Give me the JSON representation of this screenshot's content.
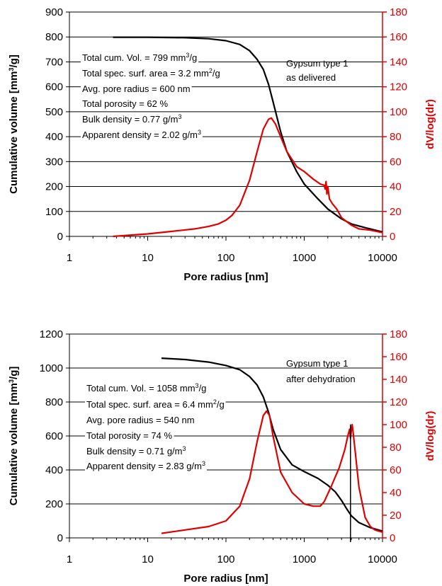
{
  "colors": {
    "cumulative": "#000000",
    "derivative": "#e00000",
    "grid": "#000000"
  },
  "chart_data": [
    {
      "type": "line",
      "xscale": "log",
      "xlim": [
        1,
        10000
      ],
      "x_ticks": [
        "1",
        "10",
        "100",
        "1000",
        "10000"
      ],
      "xlabel": "Pore radius [nm]",
      "ylabel": "Cumulative volume [mm3/g]",
      "ylabel_parts": {
        "pre": "Cumulative volume [mm",
        "sup": "3",
        "post": "/g]"
      },
      "ylim": [
        0,
        900
      ],
      "y_ticks": [
        "0",
        "100",
        "200",
        "300",
        "400",
        "500",
        "600",
        "700",
        "800",
        "900"
      ],
      "y2label": "dV/log(dr)",
      "y2lim": [
        0,
        180
      ],
      "y2_ticks": [
        "0",
        "20",
        "40",
        "60",
        "80",
        "100",
        "120",
        "140",
        "160",
        "180"
      ],
      "grid": "horizontal major lines",
      "annotation": [
        "Gypsum type 1",
        "as delivered"
      ],
      "properties": [
        {
          "pre": "Total cum. Vol. = 799 mm",
          "sup": "3",
          "post": "/g"
        },
        {
          "pre": "Total spec. surf. area = 3.2 mm",
          "sup": "2",
          "post": "/g"
        },
        {
          "pre": "Avg. pore radius = 600 nm",
          "sup": "",
          "post": ""
        },
        {
          "pre": "Total porosity = 62 %",
          "sup": "",
          "post": ""
        },
        {
          "pre": "Bulk density = 0.77 g/m",
          "sup": "3",
          "post": ""
        },
        {
          "pre": "Apparent density = 2.02 g/m",
          "sup": "3",
          "post": ""
        }
      ],
      "series": [
        {
          "axis": "left",
          "color": "#000000",
          "x": [
            3.6,
            10,
            30,
            60,
            100,
            150,
            200,
            250,
            300,
            350,
            400,
            500,
            600,
            800,
            1000,
            1500,
            2000,
            3000,
            4000,
            6000,
            10000
          ],
          "y": [
            799,
            799,
            797,
            793,
            785,
            770,
            745,
            710,
            670,
            610,
            540,
            420,
            340,
            260,
            210,
            150,
            110,
            70,
            50,
            35,
            18
          ]
        },
        {
          "axis": "right",
          "color": "#e00000",
          "x": [
            3.6,
            10,
            20,
            40,
            60,
            80,
            100,
            120,
            150,
            200,
            250,
            300,
            350,
            380,
            400,
            430,
            500,
            600,
            800,
            1000,
            1300,
            1600,
            1800,
            1850,
            1900,
            1950,
            2000,
            2100,
            2300,
            2600,
            3000,
            4000,
            5000,
            7000,
            10000
          ],
          "y": [
            0,
            2,
            4,
            6,
            8,
            10,
            13,
            17,
            25,
            45,
            68,
            86,
            94,
            95,
            93,
            90,
            80,
            68,
            56,
            52,
            46,
            42,
            41,
            38,
            44,
            34,
            40,
            30,
            26,
            22,
            15,
            9,
            6,
            5,
            3
          ]
        }
      ]
    },
    {
      "type": "line",
      "xscale": "log",
      "xlim": [
        1,
        10000
      ],
      "x_ticks": [
        "1",
        "10",
        "100",
        "1000",
        "10000"
      ],
      "xlabel": "Pore radius [nm]",
      "ylabel": "Cumulative volume [mm3/g]",
      "ylabel_parts": {
        "pre": "Cumulative volume [mm",
        "sup": "3",
        "post": "/g]"
      },
      "ylim": [
        0,
        1200
      ],
      "y_ticks": [
        "0",
        "200",
        "400",
        "600",
        "800",
        "1000",
        "1200"
      ],
      "y2label": "dV/log(dr)",
      "y2lim": [
        0,
        180
      ],
      "y2_ticks": [
        "0",
        "20",
        "40",
        "60",
        "80",
        "100",
        "120",
        "140",
        "160",
        "180"
      ],
      "grid": "horizontal major lines",
      "annotation": [
        "Gypsum type 1",
        "after dehydration"
      ],
      "properties": [
        {
          "pre": "Total cum. Vol. = 1058 mm",
          "sup": "3",
          "post": "/g"
        },
        {
          "pre": "Total spec. surf. area = 6.4 mm",
          "sup": "2",
          "post": "/g"
        },
        {
          "pre": "Avg. pore radius = 540 nm",
          "sup": "",
          "post": ""
        },
        {
          "pre": "Total porosity = 74 %",
          "sup": "",
          "post": ""
        },
        {
          "pre": "Bulk density = 0.71 g/m",
          "sup": "3",
          "post": ""
        },
        {
          "pre": "Apparent density = 2.83 g/m",
          "sup": "3",
          "post": ""
        }
      ],
      "series": [
        {
          "axis": "left",
          "color": "#000000",
          "x": [
            15,
            30,
            60,
            100,
            150,
            200,
            250,
            300,
            350,
            400,
            500,
            700,
            1000,
            1500,
            2000,
            2500,
            3000,
            3500,
            4000,
            5000,
            7000,
            10000
          ],
          "y": [
            1058,
            1050,
            1035,
            1015,
            990,
            950,
            900,
            830,
            740,
            640,
            520,
            430,
            390,
            350,
            310,
            270,
            220,
            170,
            130,
            90,
            60,
            40
          ]
        },
        {
          "axis": "right",
          "color": "#e00000",
          "x": [
            15,
            30,
            60,
            100,
            150,
            200,
            250,
            300,
            330,
            360,
            400,
            500,
            700,
            1000,
            1300,
            1600,
            1800,
            2200,
            2800,
            3300,
            3600,
            3800,
            3900,
            4000,
            4100,
            4200,
            4500,
            5000,
            6000,
            7000,
            8000,
            10000
          ],
          "y": [
            4,
            7,
            10,
            15,
            28,
            52,
            85,
            108,
            112,
            108,
            90,
            58,
            40,
            30,
            28,
            28,
            32,
            45,
            62,
            78,
            90,
            96,
            88,
            95,
            100,
            94,
            75,
            45,
            18,
            10,
            7,
            5
          ]
        }
      ]
    }
  ]
}
